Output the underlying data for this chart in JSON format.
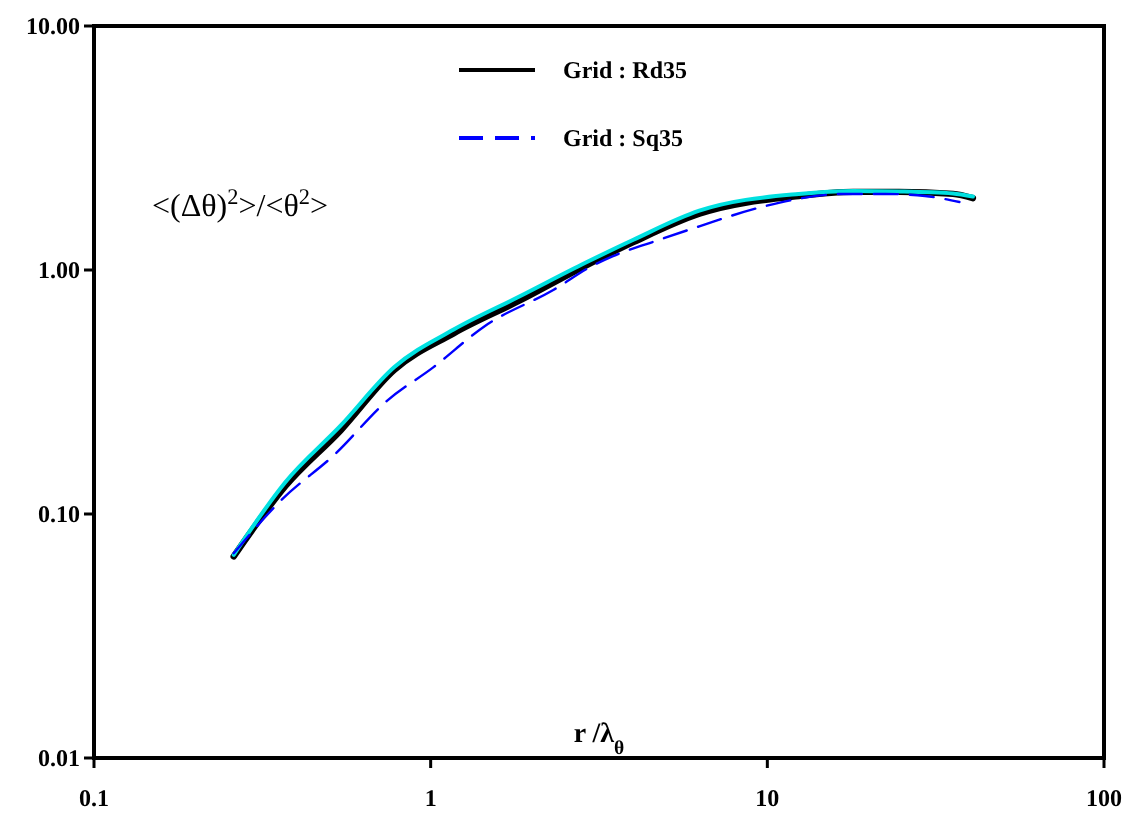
{
  "chart_data": {
    "type": "line",
    "xlabel": "r /λ$_{θ}$",
    "log": "xy",
    "xlim": [
      0.1,
      100
    ],
    "ylim": [
      0.01,
      10
    ],
    "xticks": [
      0.1,
      1,
      10,
      100
    ],
    "yticks": [
      {
        "value": 0.01,
        "label": "0.01"
      },
      {
        "value": 0.1,
        "label": "0.10"
      },
      {
        "value": 1,
        "label": "1.00"
      },
      {
        "value": 10,
        "label": "10.00"
      }
    ],
    "grid": false,
    "legend": "top",
    "marker": "none",
    "annotations": [
      "<(Δθ)$^{2}$>/<θ$^{2}$>"
    ],
    "series": [
      {
        "name": "Grid : Rd35",
        "color": "#000000",
        "line_style": "solid",
        "x": [
          0.26,
          0.37,
          0.54,
          0.78,
          1.17,
          1.84,
          2.88,
          4.0,
          6.28,
          12.4,
          18.0,
          24.6,
          35.6,
          40.8
        ],
        "values": [
          0.067,
          0.13,
          0.22,
          0.39,
          0.55,
          0.75,
          1.04,
          1.3,
          1.7,
          2.01,
          2.09,
          2.09,
          2.05,
          1.97
        ]
      },
      {
        "color": "#00e0e0",
        "line_style": "solid",
        "x": [
          0.26,
          0.37,
          0.54,
          0.78,
          1.17,
          1.84,
          2.88,
          4.0,
          6.28,
          12.4,
          18.0,
          24.6,
          35.6,
          40.8
        ],
        "values": [
          0.068,
          0.135,
          0.23,
          0.4,
          0.57,
          0.78,
          1.07,
          1.33,
          1.75,
          2.05,
          2.11,
          2.1,
          2.06,
          2.0
        ]
      },
      {
        "name": "Grid : Sq35",
        "color": "#0000ff",
        "line_style": "dashed",
        "x": [
          0.26,
          0.36,
          0.52,
          0.74,
          1.02,
          1.45,
          2.32,
          3.02,
          3.48,
          4.78,
          6.28,
          9.89,
          17.0,
          22.4,
          29.4,
          37.2
        ],
        "values": [
          0.069,
          0.114,
          0.176,
          0.29,
          0.4,
          0.59,
          0.83,
          1.04,
          1.14,
          1.33,
          1.51,
          1.83,
          2.05,
          2.05,
          2.01,
          1.9
        ]
      }
    ]
  }
}
